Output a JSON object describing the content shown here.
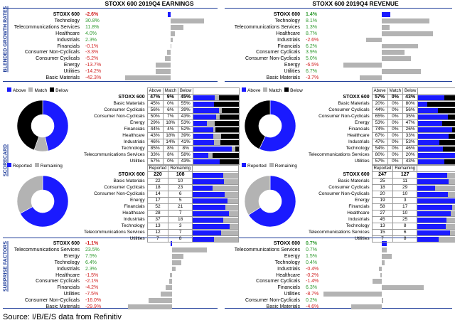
{
  "headers": {
    "earnings": "STOXX 600 2019Q4 EARNINGS",
    "revenue": "STOXX 600 2019Q4 REVENUE"
  },
  "side_labels": {
    "growth": "BLENDED GROWTH RATES",
    "scorecard": "SCORECARD",
    "surprise": "SURPRISE FACTORS"
  },
  "source": "Source:  I/B/E/S data from Refinitiv",
  "colors": {
    "blue": "#1a1aff",
    "gray": "#b3b3b3",
    "black": "#000000",
    "pos": "#2f9a2f",
    "neg": "#d11f1f",
    "rule": "#1f3d99"
  },
  "chart_data": [
    {
      "type": "bar",
      "id": "earnings-growth",
      "categories": [
        "STOXX 600",
        "Technology",
        "Telecommunications Services",
        "Healthcare",
        "Industrials",
        "Financials",
        "Consumer Non-Cyclicals",
        "Consumer Cyclicals",
        "Energy",
        "Utilities",
        "Basic Materials"
      ],
      "values": [
        -2.6,
        30.8,
        11.8,
        4.0,
        2.3,
        -0.1,
        -3.3,
        -5.2,
        -13.7,
        -14.2,
        -42.3
      ],
      "labels": [
        "-2.6%",
        "30.8%",
        "11.8%",
        "4.0%",
        "2.3%",
        "-0.1%",
        "-3.3%",
        "-5.2%",
        "-13.7%",
        "-14.2%",
        "-42.3%"
      ]
    },
    {
      "type": "bar",
      "id": "revenue-growth",
      "categories": [
        "STOXX 600",
        "Technology",
        "Telecommunications Services",
        "Healthcare",
        "Industrials",
        "Financials",
        "Consumer Cyclicals",
        "Consumer Non-Cyclicals",
        "Energy",
        "Utilities",
        "Basic Materials"
      ],
      "values": [
        1.4,
        8.1,
        1.3,
        8.7,
        -2.6,
        6.2,
        3.9,
        5.0,
        -6.5,
        6.7,
        -3.7
      ],
      "labels": [
        "1.4%",
        "8.1%",
        "1.3%",
        "8.7%",
        "-2.6%",
        "6.2%",
        "3.9%",
        "5.0%",
        "-6.5%",
        "6.7%",
        "-3.7%"
      ]
    },
    {
      "type": "table",
      "id": "earnings-above-below",
      "legend": [
        "Above",
        "Match",
        "Below"
      ],
      "columns": [
        "Above",
        "Match",
        "Below"
      ],
      "total": {
        "name": "STOXX 600",
        "above": 47,
        "match": 9,
        "below": 45,
        "labels": [
          "47%",
          "9%",
          "45%"
        ]
      },
      "rows": [
        {
          "name": "Basic Materials",
          "above": 45,
          "match": 0,
          "below": 55,
          "labels": [
            "45%",
            "0%",
            "55%"
          ]
        },
        {
          "name": "Consumer Cyclicals",
          "above": 56,
          "match": 6,
          "below": 39,
          "labels": [
            "56%",
            "6%",
            "39%"
          ]
        },
        {
          "name": "Consumer Non-Cyclicals",
          "above": 50,
          "match": 7,
          "below": 43,
          "labels": [
            "50%",
            "7%",
            "43%"
          ]
        },
        {
          "name": "Energy",
          "above": 29,
          "match": 18,
          "below": 53,
          "labels": [
            "29%",
            "18%",
            "53%"
          ]
        },
        {
          "name": "Financials",
          "above": 44,
          "match": 4,
          "below": 52,
          "labels": [
            "44%",
            "4%",
            "52%"
          ]
        },
        {
          "name": "Healthcare",
          "above": 43,
          "match": 18,
          "below": 39,
          "labels": [
            "43%",
            "18%",
            "39%"
          ]
        },
        {
          "name": "Industrials",
          "above": 46,
          "match": 14,
          "below": 41,
          "labels": [
            "46%",
            "14%",
            "41%"
          ]
        },
        {
          "name": "Technology",
          "above": 85,
          "match": 8,
          "below": 8,
          "labels": [
            "85%",
            "8%",
            "8%"
          ]
        },
        {
          "name": "Telecommunications Services",
          "above": 33,
          "match": 8,
          "below": 58,
          "labels": [
            "33%",
            "8%",
            "58%"
          ]
        },
        {
          "name": "Utilities",
          "above": 57,
          "match": 0,
          "below": 43,
          "labels": [
            "57%",
            "0%",
            "43%"
          ]
        }
      ]
    },
    {
      "type": "table",
      "id": "revenue-above-below",
      "legend": [
        "Above",
        "Match",
        "Below"
      ],
      "columns": [
        "Above",
        "Match",
        "Below"
      ],
      "total": {
        "name": "STOXX 600",
        "above": 57,
        "match": 0,
        "below": 43,
        "labels": [
          "57%",
          "0%",
          "43%"
        ]
      },
      "rows": [
        {
          "name": "Basic Materials",
          "above": 20,
          "match": 0,
          "below": 80,
          "labels": [
            "20%",
            "0%",
            "80%"
          ]
        },
        {
          "name": "Consumer Cyclicals",
          "above": 44,
          "match": 0,
          "below": 56,
          "labels": [
            "44%",
            "0%",
            "56%"
          ]
        },
        {
          "name": "Consumer Non-Cyclicals",
          "above": 65,
          "match": 0,
          "below": 35,
          "labels": [
            "65%",
            "0%",
            "35%"
          ]
        },
        {
          "name": "Energy",
          "above": 53,
          "match": 0,
          "below": 47,
          "labels": [
            "53%",
            "0%",
            "47%"
          ]
        },
        {
          "name": "Financials",
          "above": 74,
          "match": 0,
          "below": 26,
          "labels": [
            "74%",
            "0%",
            "26%"
          ]
        },
        {
          "name": "Healthcare",
          "above": 67,
          "match": 0,
          "below": 33,
          "labels": [
            "67%",
            "0%",
            "33%"
          ]
        },
        {
          "name": "Industrials",
          "above": 47,
          "match": 0,
          "below": 53,
          "labels": [
            "47%",
            "0%",
            "53%"
          ]
        },
        {
          "name": "Technology",
          "above": 54,
          "match": 0,
          "below": 46,
          "labels": [
            "54%",
            "0%",
            "46%"
          ]
        },
        {
          "name": "Telecommunications Services",
          "above": 80,
          "match": 0,
          "below": 20,
          "labels": [
            "80%",
            "0%",
            "20%"
          ]
        },
        {
          "name": "Utilities",
          "above": 57,
          "match": 0,
          "below": 43,
          "labels": [
            "57%",
            "0%",
            "43%"
          ]
        }
      ]
    },
    {
      "type": "table",
      "id": "earnings-reported",
      "legend": [
        "Reported",
        "Remaining"
      ],
      "columns": [
        "Reported",
        "Remaining"
      ],
      "total": {
        "name": "STOXX 600",
        "reported": 220,
        "remaining": 108
      },
      "rows": [
        {
          "name": "Basic Materials",
          "reported": 22,
          "remaining": 10
        },
        {
          "name": "Consumer Cyclicals",
          "reported": 18,
          "remaining": 23
        },
        {
          "name": "Consumer Non-Cyclicals",
          "reported": 14,
          "remaining": 6
        },
        {
          "name": "Energy",
          "reported": 17,
          "remaining": 5
        },
        {
          "name": "Financials",
          "reported": 52,
          "remaining": 21
        },
        {
          "name": "Healthcare",
          "reported": 28,
          "remaining": 7
        },
        {
          "name": "Industrials",
          "reported": 37,
          "remaining": 18
        },
        {
          "name": "Technology",
          "reported": 13,
          "remaining": 3
        },
        {
          "name": "Telecommunications Services",
          "reported": 12,
          "remaining": 7
        },
        {
          "name": "Utilities",
          "reported": 7,
          "remaining": 8
        }
      ]
    },
    {
      "type": "table",
      "id": "revenue-reported",
      "legend": [
        "Reported",
        "Remaining"
      ],
      "columns": [
        "Reported",
        "Remaining"
      ],
      "total": {
        "name": "STOXX 600",
        "reported": 247,
        "remaining": 127
      },
      "rows": [
        {
          "name": "Basic Materials",
          "reported": 25,
          "remaining": 11
        },
        {
          "name": "Consumer Cyclicals",
          "reported": 18,
          "remaining": 29
        },
        {
          "name": "Consumer Non-Cyclicals",
          "reported": 20,
          "remaining": 10
        },
        {
          "name": "Energy",
          "reported": 19,
          "remaining": 3
        },
        {
          "name": "Financials",
          "reported": 58,
          "remaining": 17
        },
        {
          "name": "Healthcare",
          "reported": 27,
          "remaining": 10
        },
        {
          "name": "Industrials",
          "reported": 45,
          "remaining": 25
        },
        {
          "name": "Technology",
          "reported": 13,
          "remaining": 8
        },
        {
          "name": "Telecommunications Services",
          "reported": 15,
          "remaining": 6
        },
        {
          "name": "Utilities",
          "reported": 7,
          "remaining": 8
        }
      ]
    },
    {
      "type": "bar",
      "id": "earnings-surprise",
      "categories": [
        "STOXX 600",
        "Telecommunications Services",
        "Energy",
        "Technology",
        "Industrials",
        "Healthcare",
        "Consumer Cyclicals",
        "Financials",
        "Utilities",
        "Consumer Non-Cyclicals",
        "Basic Materials"
      ],
      "values": [
        -1.1,
        23.5,
        7.5,
        6.4,
        2.3,
        -1.5,
        -2.1,
        -4.2,
        -7.5,
        -16.0,
        -29.9
      ],
      "labels": [
        "-1.1%",
        "23.5%",
        "7.5%",
        "6.4%",
        "2.3%",
        "-1.5%",
        "-2.1%",
        "-4.2%",
        "-7.5%",
        "-16.0%",
        "-29.9%"
      ]
    },
    {
      "type": "bar",
      "id": "revenue-surprise",
      "categories": [
        "STOXX 600",
        "Telecommunications Services",
        "Energy",
        "Technology",
        "Industrials",
        "Healthcare",
        "Consumer Cyclicals",
        "Financials",
        "Utilities",
        "Consumer Non-Cyclicals",
        "Basic Materials"
      ],
      "values": [
        0.7,
        0.7,
        1.5,
        0.4,
        -0.4,
        -0.2,
        -1.4,
        6.3,
        -8.7,
        0.2,
        -4.6
      ],
      "labels": [
        "0.7%",
        "0.7%",
        "1.5%",
        "0.4%",
        "-0.4%",
        "-0.2%",
        "-1.4%",
        "6.3%",
        "-8.7%",
        "0.2%",
        "-4.6%"
      ]
    }
  ]
}
